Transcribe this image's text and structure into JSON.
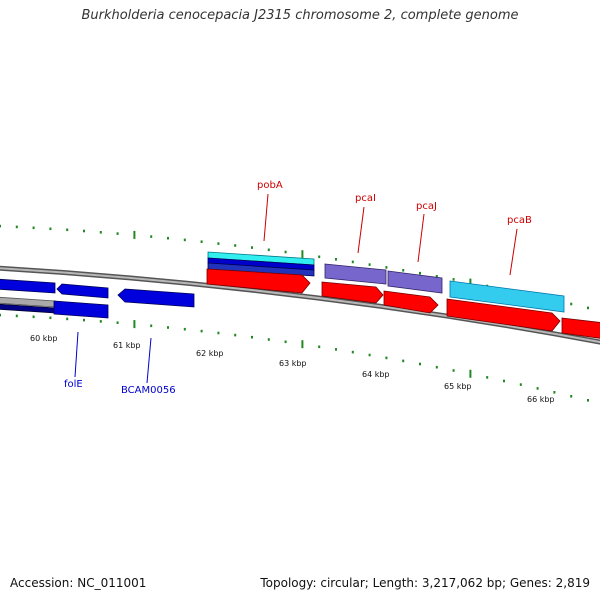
{
  "title": "Burkholderia cenocepacia J2315 chromosome 2, complete genome",
  "footer": {
    "accession": "Accession: NC_011001",
    "summary": "Topology: circular; Length: 3,217,062 bp; Genes: 2,819"
  },
  "colors": {
    "backbone": "#8a8a8a",
    "forward_gene": "#ff0000",
    "reverse_gene": "#0000dd",
    "cyan_gene": "#33ccee",
    "purple_gene": "#7766cc",
    "tick_dot": "#228822",
    "label_top": "#cc0000",
    "label_bottom": "#0000cc"
  },
  "kbp_labels": [
    "60 kbp",
    "61 kbp",
    "62 kbp",
    "63 kbp",
    "64 kbp",
    "65 kbp",
    "66 kbp"
  ],
  "gene_labels": {
    "top": [
      "pobA",
      "pcaI",
      "pcaJ",
      "pcaB"
    ],
    "bottom": [
      "folE",
      "BCAM0056"
    ]
  }
}
